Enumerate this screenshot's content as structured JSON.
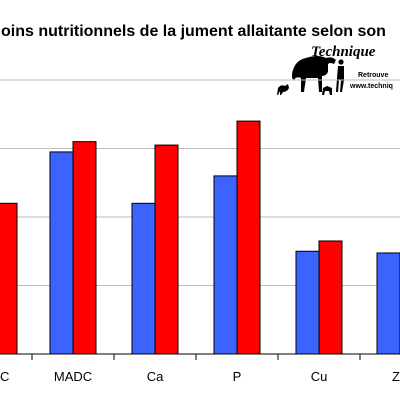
{
  "chart_data": {
    "type": "bar",
    "title": "oins nutritionnels de la jument allaitante selon son",
    "categories": [
      "C",
      "MADC",
      "Ca",
      "P",
      "Cu",
      "Z"
    ],
    "series": [
      {
        "color": "#3d63ff",
        "values": [
          null,
          118,
          88,
          104,
          60,
          59
        ]
      },
      {
        "color": "#ff0000",
        "values": [
          88,
          124,
          122,
          136,
          66,
          null
        ]
      }
    ],
    "ylim": [
      0,
      160
    ],
    "grid": "horizontal",
    "legend": "none"
  },
  "logo": {
    "brand": "Technique",
    "line1": "Retrouve",
    "line2": "www.techniq"
  }
}
